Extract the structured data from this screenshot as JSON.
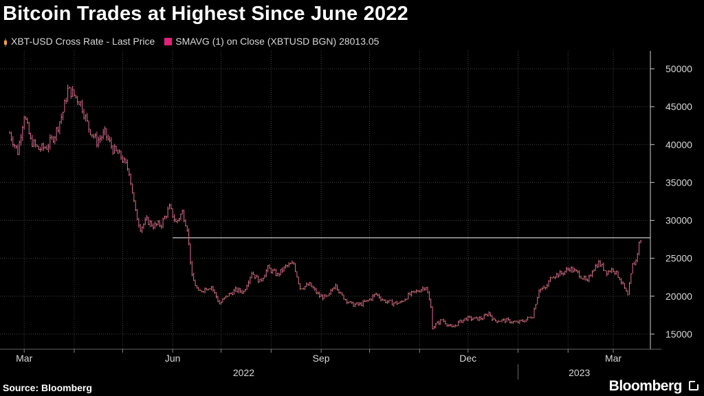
{
  "header": {
    "title": "Bitcoin Trades at Highest Since June 2022"
  },
  "legend": {
    "series1_label": "XBT-USD Cross Rate - Last Price",
    "series2_label": "SMAVG (1)  on Close (XBTUSD BGN) 28013.05"
  },
  "footer": {
    "source": "Source: Bloomberg",
    "brand": "Bloomberg"
  },
  "colors": {
    "background": "#000000",
    "candle": "#e56a9a",
    "candle_wick": "#f0a860",
    "legend_orange": "#f5a04a",
    "legend_pink": "#e0207a",
    "grid": "#444444",
    "reference_line": "#ffffff"
  },
  "chart_data": {
    "type": "line",
    "title": "Bitcoin Trades at Highest Since June 2022",
    "xlabel": "",
    "ylabel": "",
    "ylim": [
      13000,
      52000
    ],
    "y_axis_side": "right",
    "y_ticks": [
      15000,
      20000,
      25000,
      30000,
      35000,
      40000,
      45000,
      50000
    ],
    "x_ticks": [
      "Mar",
      "Jun",
      "Sep",
      "Dec",
      "Mar"
    ],
    "x_year_labels": [
      "2022",
      "2023"
    ],
    "grid": true,
    "reference_line": {
      "value": 27700,
      "from_date": "2022-06-01"
    },
    "series": [
      {
        "name": "XBT-USD Cross Rate - Last Price",
        "style": "bar-candle",
        "points": [
          [
            "2022-02-20",
            41500
          ],
          [
            "2022-02-25",
            39000
          ],
          [
            "2022-03-01",
            44000
          ],
          [
            "2022-03-05",
            40500
          ],
          [
            "2022-03-10",
            39400
          ],
          [
            "2022-03-15",
            39700
          ],
          [
            "2022-03-20",
            41300
          ],
          [
            "2022-03-25",
            44300
          ],
          [
            "2022-03-28",
            47200
          ],
          [
            "2022-03-31",
            46800
          ],
          [
            "2022-04-05",
            45500
          ],
          [
            "2022-04-10",
            42200
          ],
          [
            "2022-04-15",
            40400
          ],
          [
            "2022-04-20",
            41500
          ],
          [
            "2022-04-25",
            39400
          ],
          [
            "2022-04-30",
            38400
          ],
          [
            "2022-05-05",
            36500
          ],
          [
            "2022-05-09",
            31000
          ],
          [
            "2022-05-12",
            29000
          ],
          [
            "2022-05-16",
            30000
          ],
          [
            "2022-05-20",
            29300
          ],
          [
            "2022-05-25",
            29500
          ],
          [
            "2022-05-30",
            31700
          ],
          [
            "2022-06-03",
            29700
          ],
          [
            "2022-06-07",
            31100
          ],
          [
            "2022-06-10",
            29000
          ],
          [
            "2022-06-13",
            22500
          ],
          [
            "2022-06-17",
            20500
          ],
          [
            "2022-06-21",
            21000
          ],
          [
            "2022-06-25",
            21300
          ],
          [
            "2022-06-30",
            19000
          ],
          [
            "2022-07-05",
            20100
          ],
          [
            "2022-07-10",
            20800
          ],
          [
            "2022-07-15",
            20600
          ],
          [
            "2022-07-20",
            23200
          ],
          [
            "2022-07-25",
            21900
          ],
          [
            "2022-07-30",
            23700
          ],
          [
            "2022-08-05",
            22800
          ],
          [
            "2022-08-10",
            23900
          ],
          [
            "2022-08-15",
            24300
          ],
          [
            "2022-08-19",
            21100
          ],
          [
            "2022-08-25",
            21500
          ],
          [
            "2022-08-31",
            20000
          ],
          [
            "2022-09-05",
            19800
          ],
          [
            "2022-09-10",
            21700
          ],
          [
            "2022-09-13",
            20200
          ],
          [
            "2022-09-20",
            18900
          ],
          [
            "2022-09-25",
            18900
          ],
          [
            "2022-09-30",
            19400
          ],
          [
            "2022-10-05",
            20300
          ],
          [
            "2022-10-10",
            19400
          ],
          [
            "2022-10-15",
            19100
          ],
          [
            "2022-10-20",
            19100
          ],
          [
            "2022-10-25",
            20100
          ],
          [
            "2022-10-30",
            20600
          ],
          [
            "2022-11-05",
            21300
          ],
          [
            "2022-11-08",
            18500
          ],
          [
            "2022-11-09",
            15900
          ],
          [
            "2022-11-15",
            16900
          ],
          [
            "2022-11-21",
            15800
          ],
          [
            "2022-11-25",
            16500
          ],
          [
            "2022-11-30",
            17100
          ],
          [
            "2022-12-05",
            17000
          ],
          [
            "2022-12-10",
            17100
          ],
          [
            "2022-12-14",
            17800
          ],
          [
            "2022-12-17",
            16800
          ],
          [
            "2022-12-25",
            16800
          ],
          [
            "2022-12-31",
            16500
          ],
          [
            "2023-01-05",
            16800
          ],
          [
            "2023-01-10",
            17400
          ],
          [
            "2023-01-14",
            20900
          ],
          [
            "2023-01-18",
            21000
          ],
          [
            "2023-01-22",
            22700
          ],
          [
            "2023-01-28",
            23000
          ],
          [
            "2023-02-02",
            23700
          ],
          [
            "2023-02-08",
            22900
          ],
          [
            "2023-02-13",
            21800
          ],
          [
            "2023-02-16",
            23500
          ],
          [
            "2023-02-20",
            24400
          ],
          [
            "2023-02-25",
            23200
          ],
          [
            "2023-03-01",
            23600
          ],
          [
            "2023-03-05",
            22400
          ],
          [
            "2023-03-10",
            20000
          ],
          [
            "2023-03-13",
            24100
          ],
          [
            "2023-03-15",
            24700
          ],
          [
            "2023-03-17",
            26900
          ],
          [
            "2023-03-19",
            28000
          ]
        ]
      }
    ]
  }
}
